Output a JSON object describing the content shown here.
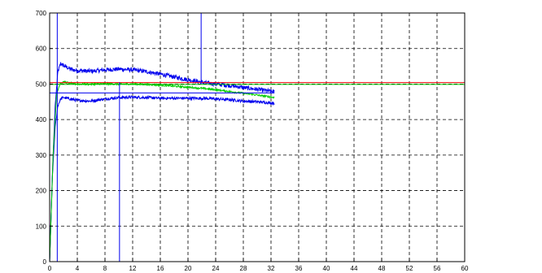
{
  "chart_data": {
    "type": "line",
    "title": "",
    "xlabel": "",
    "ylabel": "",
    "xlim": [
      0,
      60
    ],
    "ylim": [
      0,
      700
    ],
    "grid": true,
    "x_ticks": [
      0,
      4,
      8,
      12,
      16,
      20,
      24,
      28,
      32,
      36,
      40,
      44,
      48,
      52,
      56,
      60
    ],
    "y_ticks": [
      0,
      100,
      200,
      300,
      400,
      500,
      600,
      700
    ],
    "series": [
      {
        "role": "upper-envelope",
        "color": "#0000ee",
        "noise": 6,
        "x": [
          0,
          0.4,
          0.8,
          1.2,
          1.6,
          2,
          3,
          4,
          6,
          8,
          10,
          12,
          14,
          16,
          18,
          20,
          22,
          24,
          26,
          28,
          30,
          32.5
        ],
        "y": [
          0,
          250,
          440,
          535,
          558,
          552,
          542,
          538,
          536,
          540,
          542,
          540,
          535,
          528,
          520,
          512,
          505,
          500,
          496,
          490,
          485,
          478
        ]
      },
      {
        "role": "lower-envelope",
        "color": "#0000ee",
        "noise": 4,
        "x": [
          0,
          0.4,
          0.8,
          1.2,
          1.6,
          2,
          3,
          4,
          6,
          8,
          10,
          12,
          14,
          16,
          18,
          20,
          22,
          24,
          26,
          28,
          30,
          32.5
        ],
        "y": [
          0,
          240,
          380,
          440,
          458,
          462,
          458,
          454,
          452,
          458,
          462,
          463,
          462,
          460,
          460,
          460,
          460,
          458,
          456,
          452,
          450,
          446
        ]
      },
      {
        "role": "mean",
        "color": "#00cc00",
        "noise": 2.5,
        "x": [
          0,
          0.5,
          1,
          1.5,
          2,
          3,
          4,
          6,
          8,
          10,
          12,
          14,
          16,
          18,
          20,
          22,
          24,
          26,
          28,
          30,
          32.5
        ],
        "y": [
          0,
          300,
          470,
          502,
          506,
          502,
          500,
          500,
          501,
          500,
          500,
          499,
          497,
          494,
          491,
          488,
          484,
          479,
          474,
          469,
          462
        ]
      }
    ],
    "reference_lines": [
      {
        "orientation": "horizontal",
        "value": 504,
        "color": "#ff0000"
      },
      {
        "orientation": "horizontal",
        "value": 499,
        "color": "#00cc00"
      },
      {
        "orientation": "horizontal",
        "value": 475,
        "color": "#0000ee",
        "x_range": [
          0,
          32.5
        ]
      },
      {
        "orientation": "vertical",
        "value": 1.1,
        "color": "#0000ee"
      },
      {
        "orientation": "vertical",
        "value": 10.1,
        "color": "#0000ee",
        "y_range": [
          0,
          505
        ]
      },
      {
        "orientation": "vertical",
        "value": 21.9,
        "color": "#0000ee",
        "y_range": [
          500,
          700
        ]
      }
    ]
  }
}
